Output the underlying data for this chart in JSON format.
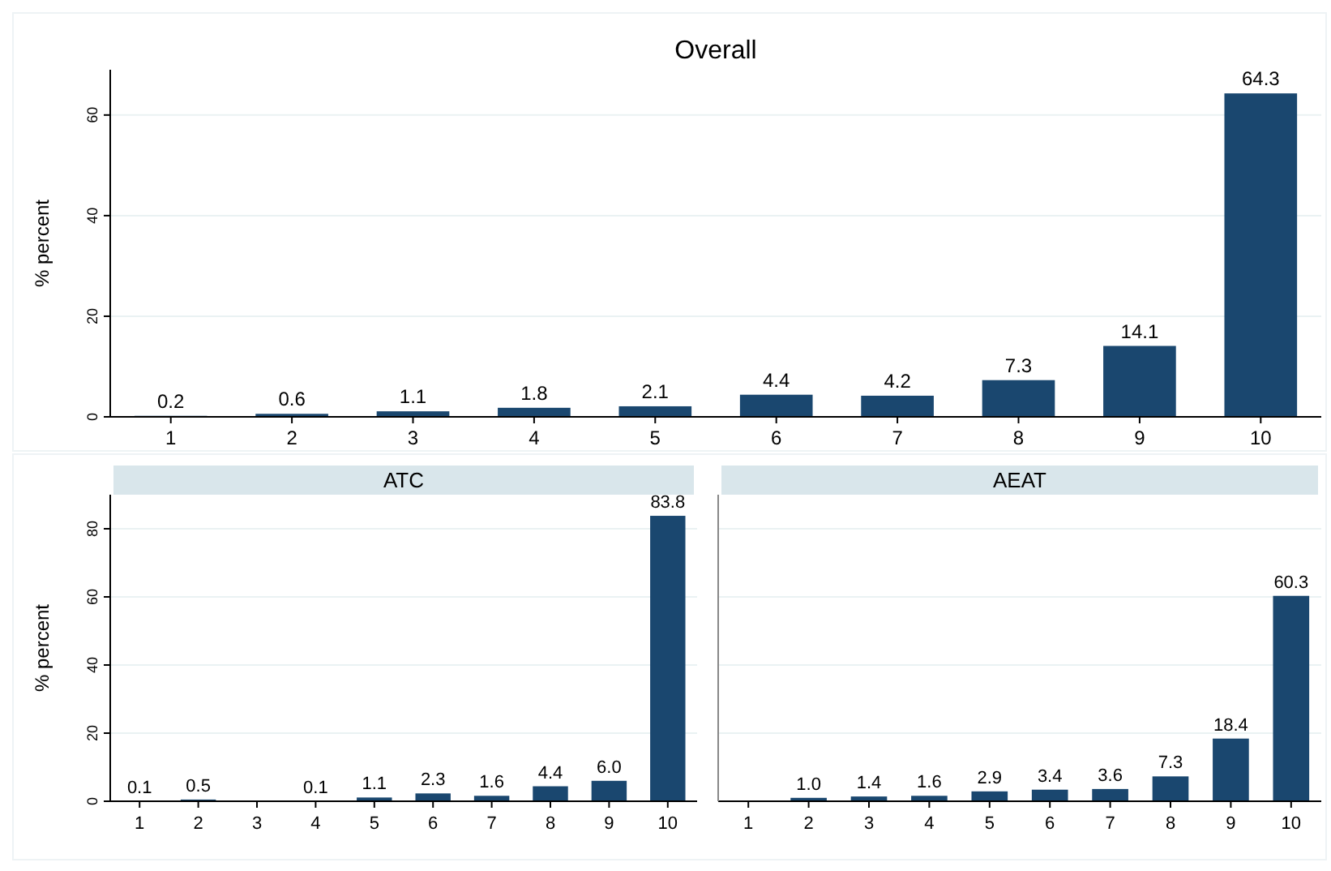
{
  "chart_data": [
    {
      "type": "bar",
      "title": "Overall",
      "ylabel": "% percent",
      "categories": [
        "1",
        "2",
        "3",
        "4",
        "5",
        "6",
        "7",
        "8",
        "9",
        "10"
      ],
      "values": [
        0.2,
        0.6,
        1.1,
        1.8,
        2.1,
        4.4,
        4.2,
        7.3,
        14.1,
        64.3
      ],
      "value_labels": [
        "0.2",
        "0.6",
        "1.1",
        "1.8",
        "2.1",
        "4.4",
        "4.2",
        "7.3",
        "14.1",
        "64.3"
      ],
      "color": "#1a476f",
      "ylim": [
        0,
        69
      ],
      "yticks": [
        0,
        20,
        40,
        60
      ],
      "grid": "y"
    },
    {
      "type": "bar",
      "title": "ATC",
      "ylabel": "% percent",
      "categories": [
        "1",
        "2",
        "3",
        "4",
        "5",
        "6",
        "7",
        "8",
        "9",
        "10"
      ],
      "values": [
        0.1,
        0.5,
        null,
        0.1,
        1.1,
        2.3,
        1.6,
        4.4,
        6.0,
        83.8
      ],
      "value_labels": [
        "0.1",
        "0.5",
        null,
        "0.1",
        "1.1",
        "2.3",
        "1.6",
        "4.4",
        "6.0",
        "83.8"
      ],
      "color": "#1a476f",
      "ylim": [
        0,
        90
      ],
      "yticks": [
        0,
        20,
        40,
        60,
        80
      ],
      "grid": "y"
    },
    {
      "type": "bar",
      "title": "AEAT",
      "categories": [
        "1",
        "2",
        "3",
        "4",
        "5",
        "6",
        "7",
        "8",
        "9",
        "10"
      ],
      "values": [
        null,
        1.0,
        1.4,
        1.6,
        2.9,
        3.4,
        3.6,
        7.3,
        18.4,
        60.3
      ],
      "value_labels": [
        null,
        "1.0",
        "1.4",
        "1.6",
        "2.9",
        "3.4",
        "3.6",
        "7.3",
        "18.4",
        "60.3"
      ],
      "color": "#1a476f",
      "ylim": [
        0,
        90
      ],
      "yticks": [
        0,
        20,
        40,
        60,
        80
      ],
      "grid": "y",
      "tick_labels": "x"
    }
  ]
}
